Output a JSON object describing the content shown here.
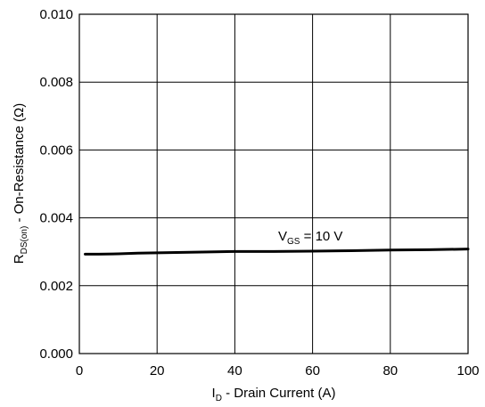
{
  "chart_data": {
    "type": "line",
    "xlabel": {
      "main": "I",
      "sub": "D",
      "rest": " - Drain Current (A)"
    },
    "ylabel": {
      "main": "R",
      "sub": "DS(on)",
      "rest": " - On-Resistance (Ω)"
    },
    "xlim": [
      0,
      100
    ],
    "ylim": [
      0,
      0.01
    ],
    "xticks": [
      "0",
      "20",
      "40",
      "60",
      "80",
      "100"
    ],
    "yticks": [
      "0.000",
      "0.002",
      "0.004",
      "0.006",
      "0.008",
      "0.010"
    ],
    "grid": true,
    "series": [
      {
        "annotation": {
          "main": "V",
          "sub": "GS",
          "rest": " = 10 V"
        },
        "x": [
          1.5,
          5,
          10,
          15,
          20,
          25,
          30,
          35,
          40,
          50,
          60,
          70,
          80,
          90,
          100
        ],
        "y": [
          0.00293,
          0.00293,
          0.00294,
          0.00296,
          0.00297,
          0.00298,
          0.00299,
          0.003,
          0.00301,
          0.00301,
          0.00302,
          0.00303,
          0.00305,
          0.00306,
          0.00308
        ]
      }
    ]
  }
}
